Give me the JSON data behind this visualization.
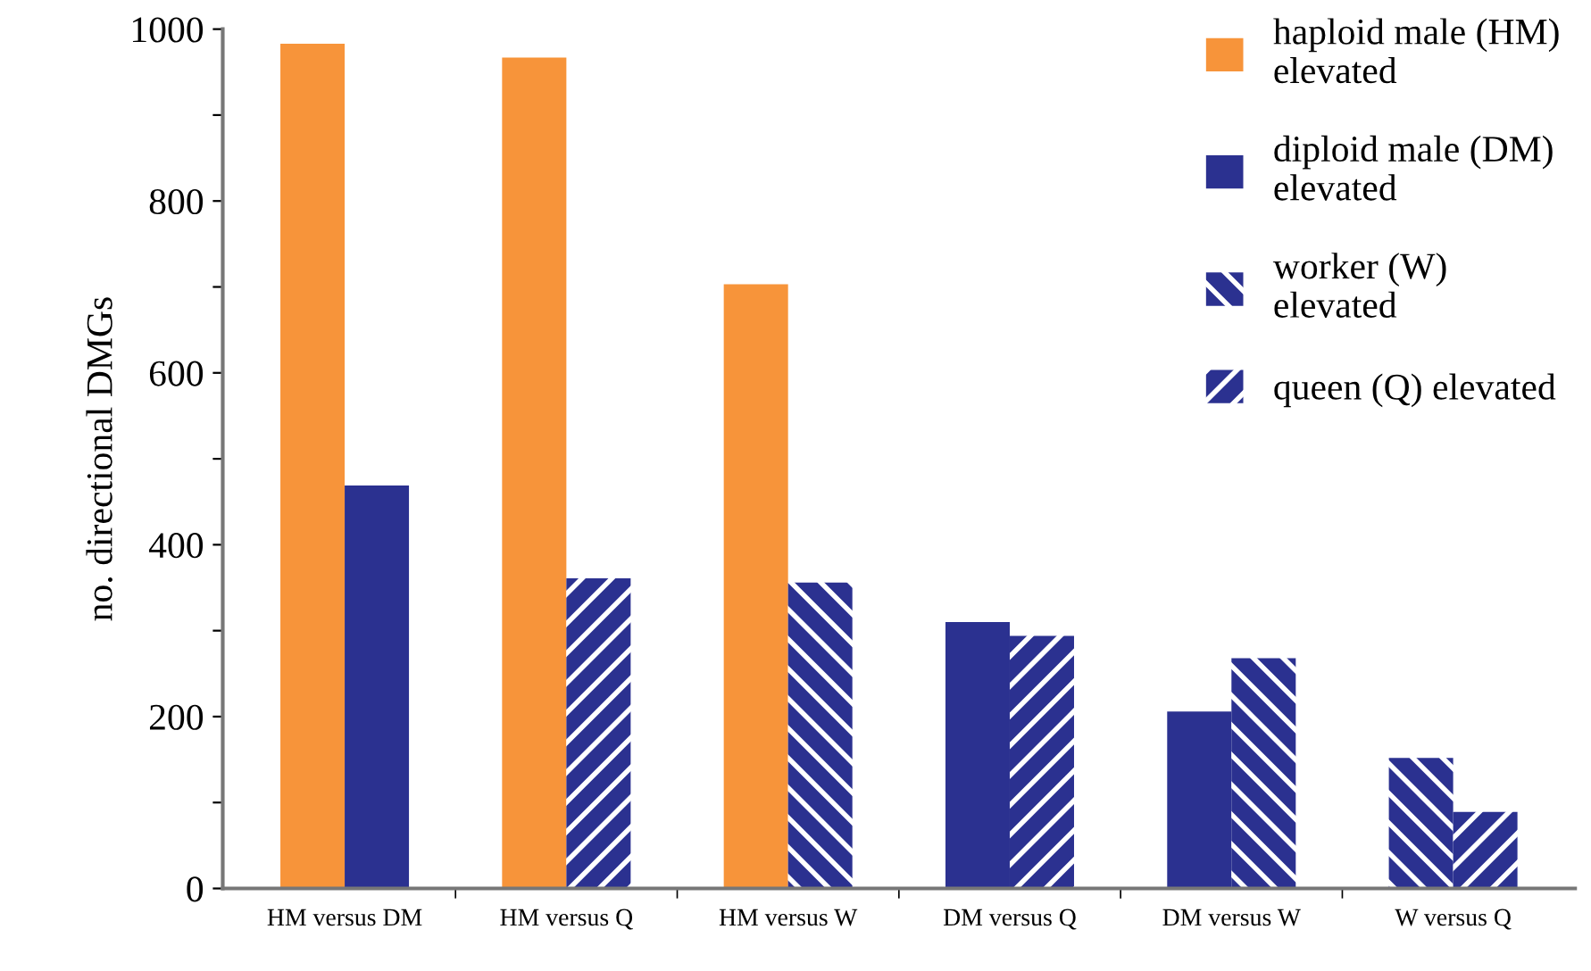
{
  "chart_data": {
    "type": "bar",
    "ylabel": "no. directional DMGs",
    "categories": [
      "HM versus DM",
      "HM versus Q",
      "HM versus W",
      "DM versus Q",
      "DM versus W",
      "W versus Q"
    ],
    "series": [
      {
        "name": "haploid male (HM)\nelevated",
        "color": "#f7943a",
        "values": [
          983,
          967,
          703,
          null,
          null,
          null
        ]
      },
      {
        "name": "diploid male (DM)\nelevated",
        "color": "#2b3190",
        "values": [
          469,
          null,
          null,
          310,
          206,
          null
        ]
      },
      {
        "name": "worker (W)\nelevated",
        "color": "#2b3190",
        "values": [
          null,
          null,
          356,
          null,
          268,
          152
        ]
      },
      {
        "name": "queen (Q) elevated",
        "color": "#2b3190",
        "values": [
          null,
          361,
          null,
          294,
          null,
          89
        ]
      }
    ],
    "ylim": [
      0,
      1000
    ],
    "yticks": [
      0,
      {
        "value": 100,
        "label": null
      },
      200,
      {
        "value": 300,
        "label": null
      },
      400,
      {
        "value": 500,
        "label": null
      },
      600,
      {
        "value": 700,
        "label": null
      },
      800,
      {
        "value": 900,
        "label": null
      },
      1000
    ],
    "grid": false,
    "legend": "top right"
  }
}
